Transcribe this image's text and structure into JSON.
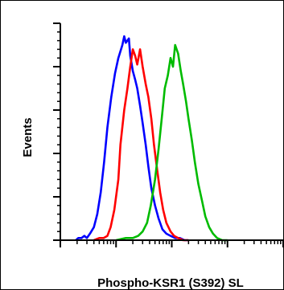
{
  "chart_data": {
    "type": "line",
    "title": "",
    "xlabel": "Phospho-KSR1 (S392) SL",
    "ylabel": "Events",
    "x_scale": "log",
    "xlim": [
      1,
      10000
    ],
    "ylim": [
      0,
      100
    ],
    "grid": false,
    "legend": "none",
    "series": [
      {
        "color": "#0000ff",
        "x": [
          1.9,
          2.1,
          2.4,
          2.7,
          3.0,
          3.4,
          4.0,
          4.6,
          5.3,
          6.1,
          7.0,
          8.2,
          9.6,
          11,
          13,
          14,
          15,
          17,
          18,
          20,
          22,
          24,
          27,
          30,
          34,
          38,
          43,
          50,
          58,
          68,
          80,
          95,
          115,
          140,
          170,
          200
        ],
        "y": [
          0,
          1,
          1,
          2,
          1,
          3,
          6,
          12,
          22,
          36,
          52,
          66,
          77,
          84,
          90,
          94,
          91,
          93,
          85,
          78,
          74,
          70,
          62,
          54,
          44,
          34,
          24,
          16,
          10,
          5,
          3,
          2,
          1,
          1,
          0,
          0
        ]
      },
      {
        "color": "#ff0000",
        "x": [
          4.0,
          5.0,
          6.0,
          7.0,
          8.0,
          9.3,
          11,
          12,
          14,
          16,
          18,
          20,
          22,
          24,
          27,
          30,
          34,
          38,
          43,
          48,
          55,
          62,
          70,
          80,
          95,
          110,
          130,
          160,
          200
        ],
        "y": [
          0,
          1,
          1,
          2,
          6,
          14,
          28,
          44,
          60,
          70,
          80,
          88,
          85,
          81,
          88,
          80,
          72,
          66,
          56,
          44,
          32,
          22,
          14,
          8,
          4,
          2,
          1,
          0,
          0
        ]
      },
      {
        "color": "#00bb00",
        "x": [
          10,
          15,
          20,
          25,
          30,
          36,
          42,
          50,
          58,
          66,
          75,
          85,
          95,
          105,
          115,
          130,
          145,
          160,
          180,
          200,
          230,
          260,
          300,
          350,
          400,
          470,
          550,
          650,
          800,
          1000
        ],
        "y": [
          0,
          1,
          1,
          2,
          4,
          8,
          16,
          28,
          42,
          56,
          70,
          76,
          84,
          80,
          90,
          86,
          78,
          72,
          64,
          56,
          46,
          36,
          26,
          18,
          11,
          6,
          3,
          1,
          0,
          0
        ]
      }
    ]
  }
}
